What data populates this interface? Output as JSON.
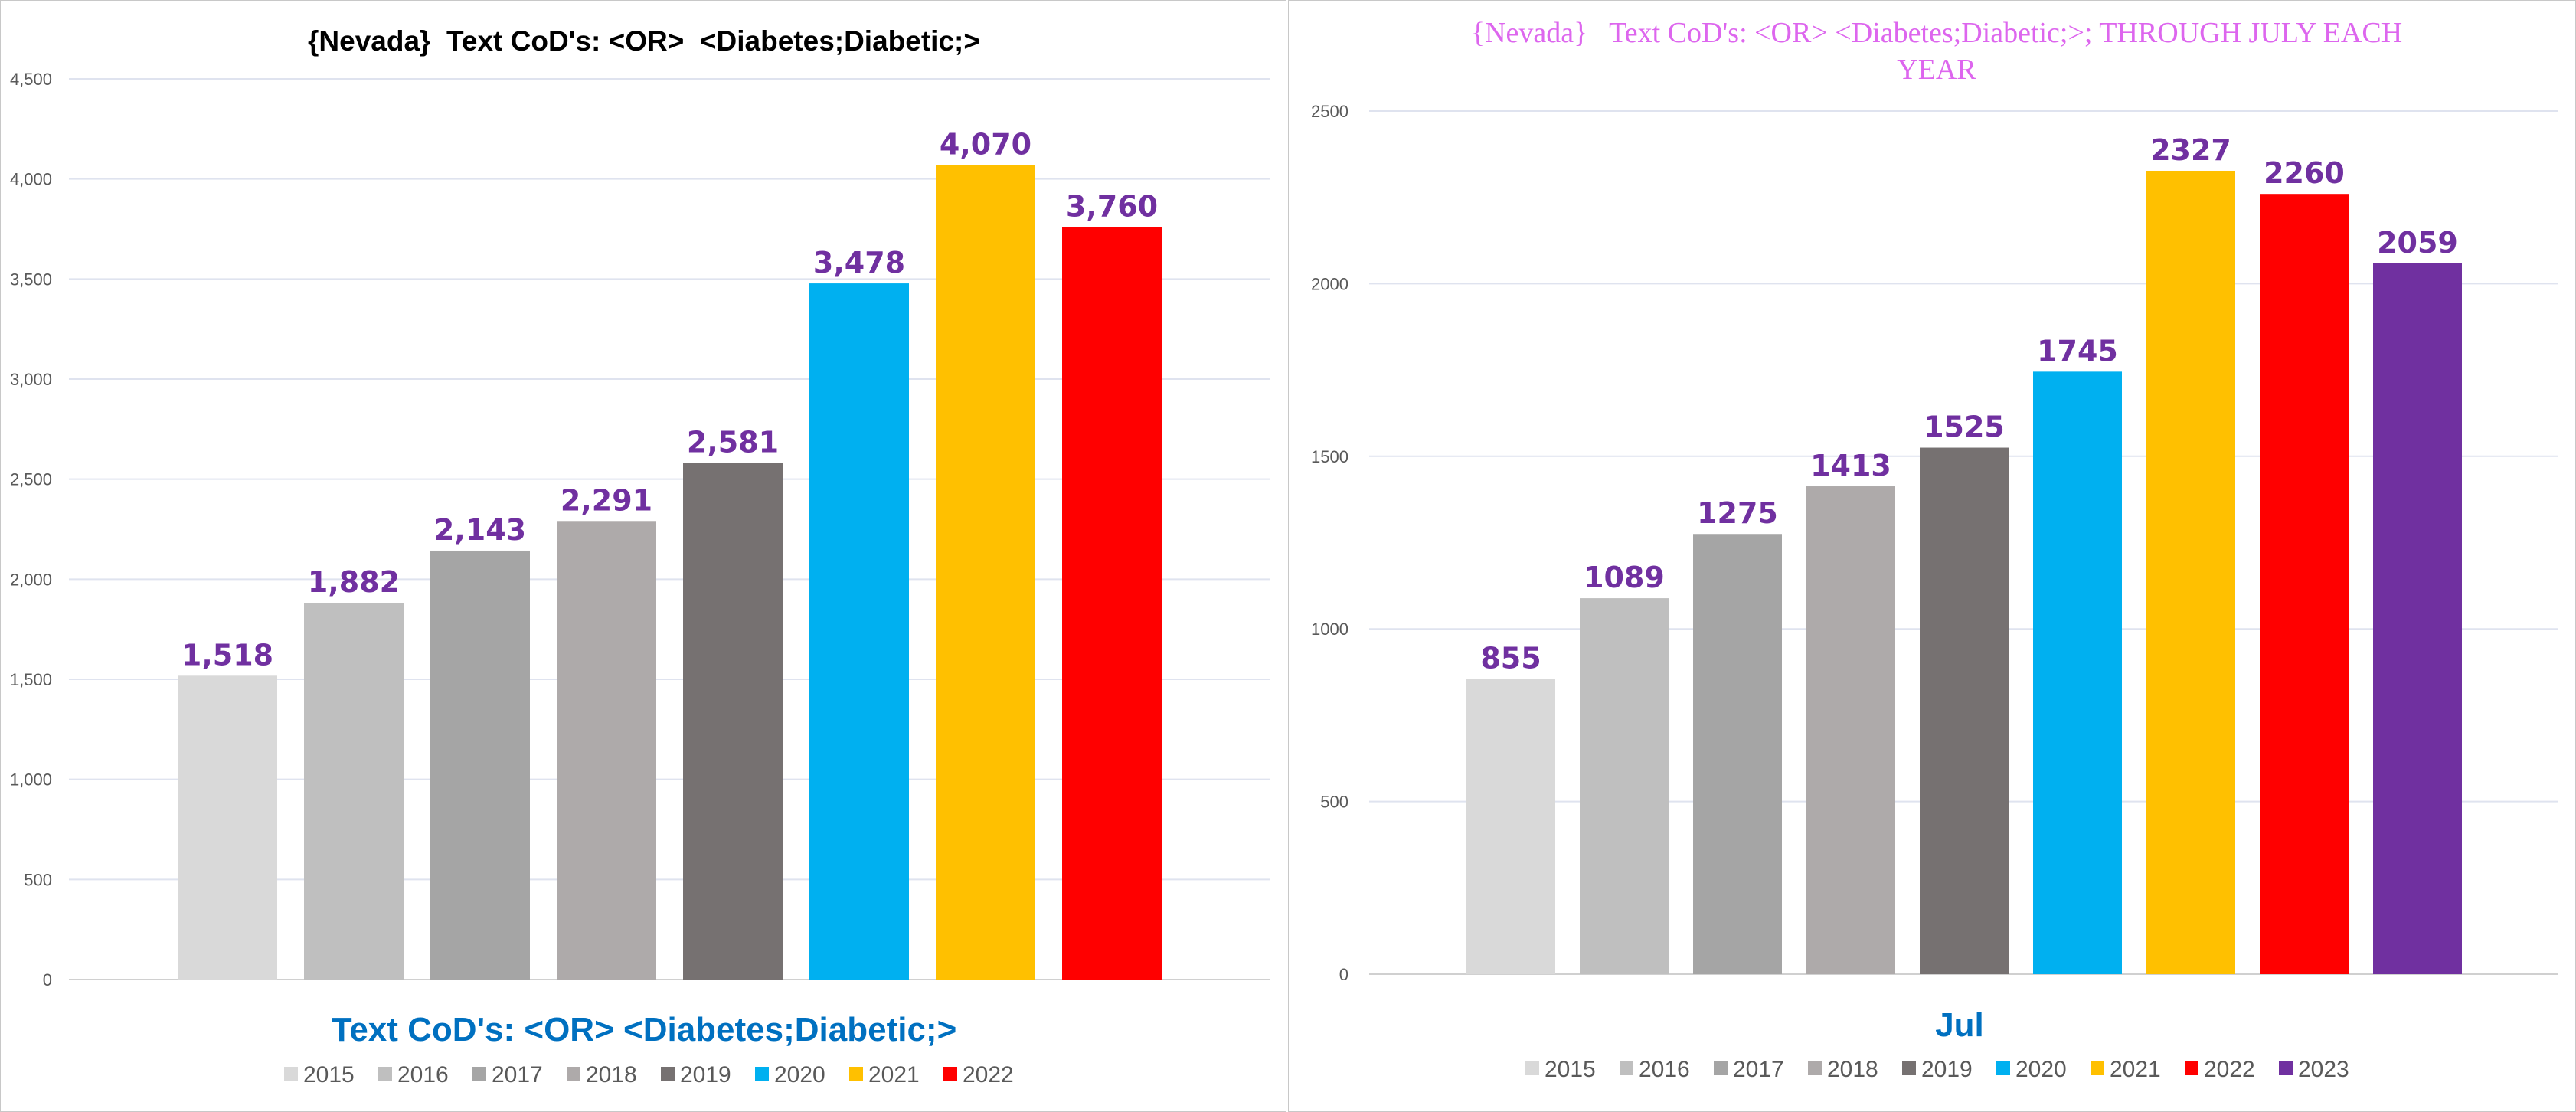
{
  "chart_data": [
    {
      "type": "bar",
      "title": "{Nevada}  Text CoD's: <OR>  <Diabetes;Diabetic;>",
      "xlabel": "Text CoD's: <OR> <Diabetes;Diabetic;>",
      "ylabel": "",
      "ylim": [
        0,
        4500
      ],
      "yticks": [
        0,
        500,
        1000,
        1500,
        2000,
        2500,
        3000,
        3500,
        4000,
        4500
      ],
      "ytick_labels": [
        "0",
        "500",
        "1,000",
        "1,500",
        "2,000",
        "2,500",
        "3,000",
        "3,500",
        "4,000",
        "4,500"
      ],
      "grid": true,
      "legend_position": "bottom",
      "categories": [
        "2015",
        "2016",
        "2017",
        "2018",
        "2019",
        "2020",
        "2021",
        "2022"
      ],
      "values": [
        1518,
        1882,
        2143,
        2291,
        2581,
        3478,
        4070,
        3760
      ],
      "value_labels": [
        "1,518",
        "1,882",
        "2,143",
        "2,291",
        "2,581",
        "3,478",
        "4,070",
        "3,760"
      ],
      "colors": [
        "#D9D9D9",
        "#BFBFBF",
        "#A5A5A5",
        "#AEAAAA",
        "#767171",
        "#00B0F0",
        "#FFC000",
        "#FF0000"
      ],
      "title_color": "#000000",
      "xlabel_color": "#0070C0",
      "label_color": "#7030A0"
    },
    {
      "type": "bar",
      "title_lines": [
        "{Nevada}   Text CoD's: <OR> <Diabetes;Diabetic;>; THROUGH JULY EACH",
        "YEAR"
      ],
      "xlabel": "Jul",
      "ylabel": "",
      "ylim": [
        0,
        2500
      ],
      "yticks": [
        0,
        500,
        1000,
        1500,
        2000,
        2500
      ],
      "ytick_labels": [
        "0",
        "500",
        "1000",
        "1500",
        "2000",
        "2500"
      ],
      "grid": true,
      "legend_position": "bottom",
      "categories": [
        "2015",
        "2016",
        "2017",
        "2018",
        "2019",
        "2020",
        "2021",
        "2022",
        "2023"
      ],
      "values": [
        855,
        1089,
        1275,
        1413,
        1525,
        1745,
        2327,
        2260,
        2059
      ],
      "value_labels": [
        "855",
        "1089",
        "1275",
        "1413",
        "1525",
        "1745",
        "2327",
        "2260",
        "2059"
      ],
      "colors": [
        "#D9D9D9",
        "#BFBFBF",
        "#A5A5A5",
        "#AEAAAA",
        "#767171",
        "#00B0F0",
        "#FFC000",
        "#FF0000",
        "#7030A0"
      ],
      "title_color": "#DD66EE",
      "xlabel_color": "#0070C0",
      "label_color": "#7030A0"
    }
  ]
}
